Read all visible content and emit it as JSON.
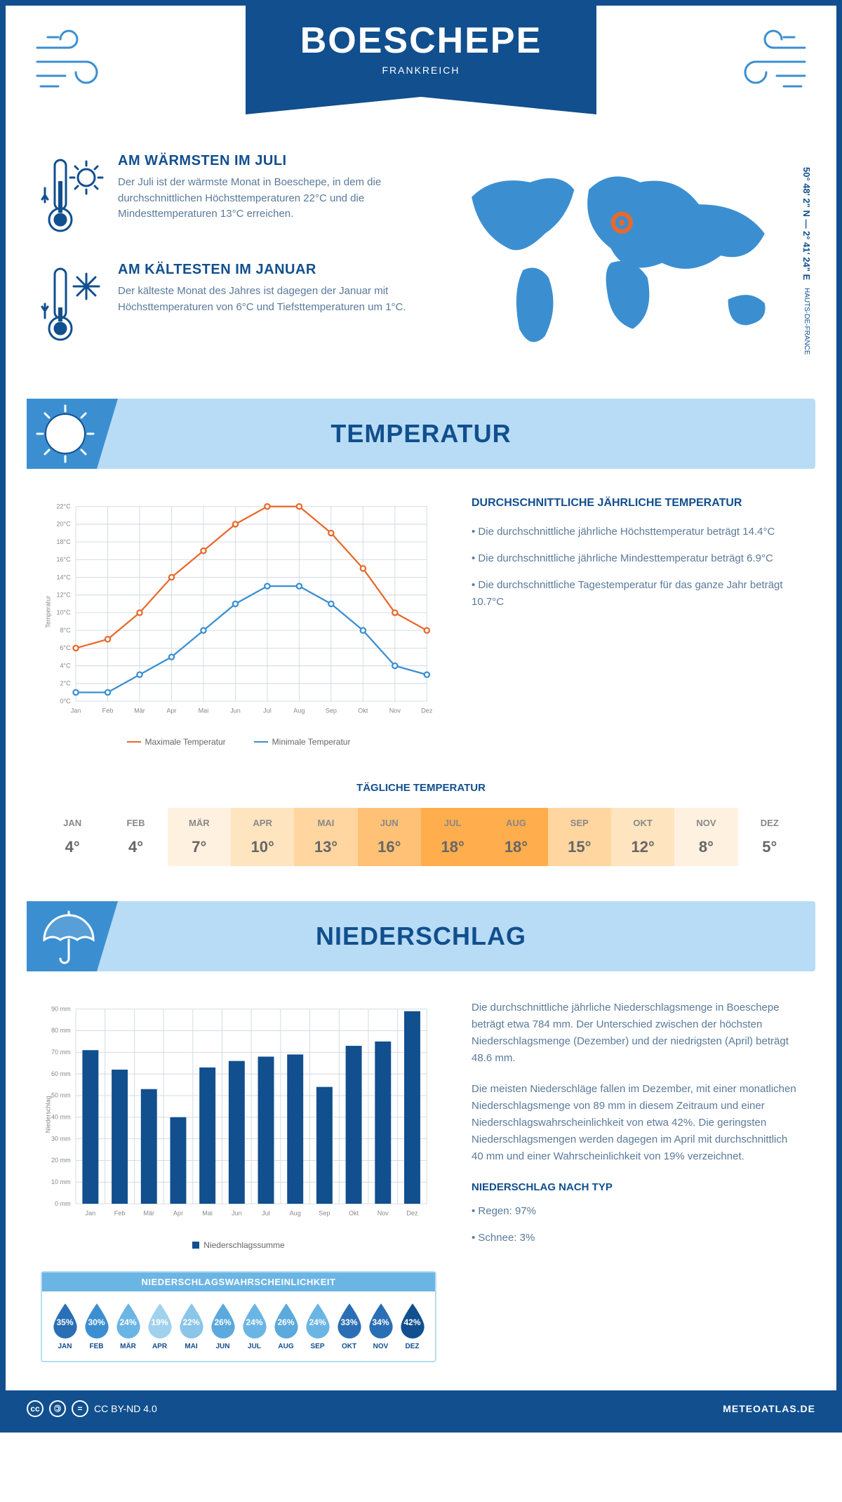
{
  "title": "BOESCHEPE",
  "country": "FRANKREICH",
  "coords": "50° 48' 2\" N — 2° 41' 24\" E",
  "region": "HAUTS-DE-FRANCE",
  "palette": {
    "primary": "#114f8e",
    "light_blue": "#b8dcf5",
    "mid_blue": "#3b8fd1",
    "max_line": "#e8692c",
    "min_line": "#3b8fd1",
    "grid": "#d0d8e0",
    "text_muted": "#5a7a9a"
  },
  "warm": {
    "title": "AM WÄRMSTEN IM JULI",
    "text": "Der Juli ist der wärmste Monat in Boeschepe, in dem die durchschnittlichen Höchsttemperaturen 22°C und die Mindesttemperaturen 13°C erreichen."
  },
  "cold": {
    "title": "AM KÄLTESTEN IM JANUAR",
    "text": "Der kälteste Monat des Jahres ist dagegen der Januar mit Höchsttemperaturen von 6°C und Tiefsttemperaturen um 1°C."
  },
  "temp_section": {
    "title": "TEMPERATUR",
    "chart": {
      "type": "line",
      "months": [
        "Jan",
        "Feb",
        "Mär",
        "Apr",
        "Mai",
        "Jun",
        "Jul",
        "Aug",
        "Sep",
        "Okt",
        "Nov",
        "Dez"
      ],
      "max_series": [
        6,
        7,
        10,
        14,
        17,
        20,
        22,
        22,
        19,
        15,
        10,
        8
      ],
      "min_series": [
        1,
        1,
        3,
        5,
        8,
        11,
        13,
        13,
        11,
        8,
        4,
        3
      ],
      "ylim": [
        0,
        22
      ],
      "ytick": 2,
      "ylabel": "Temperatur",
      "legend_max": "Maximale Temperatur",
      "legend_min": "Minimale Temperatur"
    },
    "side_title": "DURCHSCHNITTLICHE JÄHRLICHE TEMPERATUR",
    "bullets": [
      "• Die durchschnittliche jährliche Höchsttemperatur beträgt 14.4°C",
      "• Die durchschnittliche jährliche Mindesttemperatur beträgt 6.9°C",
      "• Die durchschnittliche Tagestemperatur für das ganze Jahr beträgt 10.7°C"
    ],
    "daily_title": "TÄGLICHE TEMPERATUR",
    "daily": {
      "months": [
        "JAN",
        "FEB",
        "MÄR",
        "APR",
        "MAI",
        "JUN",
        "JUL",
        "AUG",
        "SEP",
        "OKT",
        "NOV",
        "DEZ"
      ],
      "values": [
        "4°",
        "4°",
        "7°",
        "10°",
        "13°",
        "16°",
        "18°",
        "18°",
        "15°",
        "12°",
        "8°",
        "5°"
      ],
      "colors": [
        "#ffffff",
        "#ffffff",
        "#fff1df",
        "#ffe4c0",
        "#ffd6a0",
        "#ffc176",
        "#ffad4d",
        "#ffad4d",
        "#ffd6a0",
        "#ffe4c0",
        "#fff1df",
        "#ffffff"
      ]
    }
  },
  "precip_section": {
    "title": "NIEDERSCHLAG",
    "chart": {
      "type": "bar",
      "months": [
        "Jan",
        "Feb",
        "Mär",
        "Apr",
        "Mai",
        "Jun",
        "Jul",
        "Aug",
        "Sep",
        "Okt",
        "Nov",
        "Dez"
      ],
      "values": [
        71,
        62,
        53,
        40,
        63,
        66,
        68,
        69,
        54,
        73,
        75,
        89
      ],
      "ylim": [
        0,
        90
      ],
      "ytick": 10,
      "ylabel": "Niederschlag",
      "legend": "Niederschlagssumme",
      "bar_color": "#114f8e"
    },
    "para1": "Die durchschnittliche jährliche Niederschlagsmenge in Boeschepe beträgt etwa 784 mm. Der Unterschied zwischen der höchsten Niederschlagsmenge (Dezember) und der niedrigsten (April) beträgt 48.6 mm.",
    "para2": "Die meisten Niederschläge fallen im Dezember, mit einer monatlichen Niederschlagsmenge von 89 mm in diesem Zeitraum und einer Niederschlagswahrscheinlichkeit von etwa 42%. Die geringsten Niederschlagsmengen werden dagegen im April mit durchschnittlich 40 mm und einer Wahrscheinlichkeit von 19% verzeichnet.",
    "type_title": "NIEDERSCHLAG NACH TYP",
    "type_bullets": [
      "• Regen: 97%",
      "• Schnee: 3%"
    ],
    "prob_title": "NIEDERSCHLAGSWAHRSCHEINLICHKEIT",
    "prob": {
      "months": [
        "JAN",
        "FEB",
        "MÄR",
        "APR",
        "MAI",
        "JUN",
        "JUL",
        "AUG",
        "SEP",
        "OKT",
        "NOV",
        "DEZ"
      ],
      "pct": [
        "35%",
        "30%",
        "24%",
        "19%",
        "22%",
        "26%",
        "24%",
        "26%",
        "24%",
        "33%",
        "34%",
        "42%"
      ],
      "colors": [
        "#2a6fb5",
        "#3b8fd1",
        "#6bb5e5",
        "#a0d1ed",
        "#8bc5e8",
        "#5ba9dd",
        "#6bb5e5",
        "#5ba9dd",
        "#6bb5e5",
        "#2a6fb5",
        "#2a6fb5",
        "#114f8e"
      ]
    }
  },
  "footer": {
    "license": "CC BY-ND 4.0",
    "site": "METEOATLAS.DE"
  }
}
